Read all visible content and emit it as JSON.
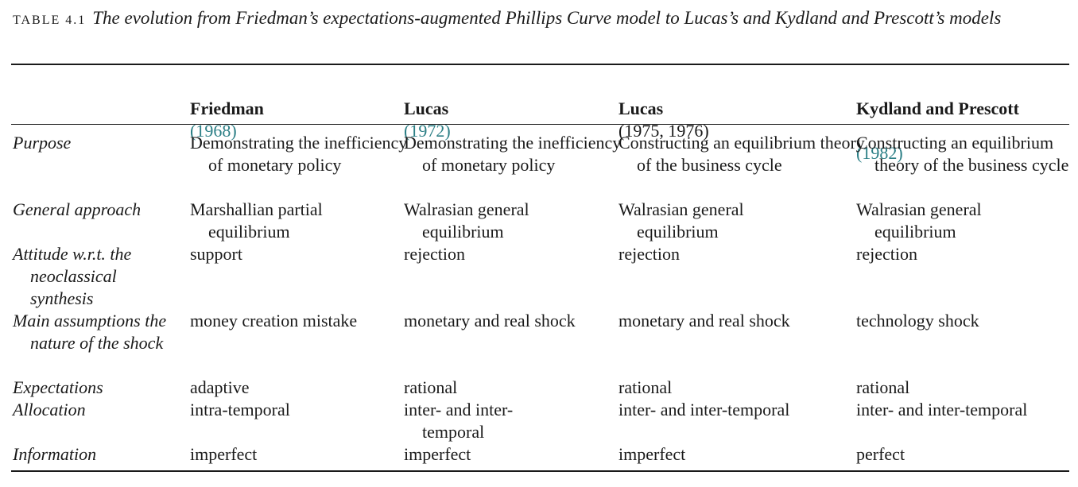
{
  "caption": {
    "label": "TABLE 4.1",
    "text": "The evolution from Friedman’s expectations-augmented Phillips Curve model to Lucas’s and Kydland and Prescott’s models"
  },
  "columns": [
    {
      "name": "Friedman",
      "year": "(1968)",
      "year_linked": true
    },
    {
      "name": "Lucas",
      "year": "(1972)",
      "year_linked": true
    },
    {
      "name": "Lucas",
      "year": "(1975, 1976)",
      "year_linked": false
    },
    {
      "name": "Kydland and Prescott",
      "year": "(1982)",
      "year_linked": true
    }
  ],
  "rows": [
    {
      "label": "Purpose",
      "cells": [
        "Demonstrating the inefficiency of monetary policy",
        "Demonstrating the inefficiency of monetary policy",
        "Constructing an equilibrium theory of the business cycle",
        "Constructing an equilibrium theory of the business cycle"
      ]
    },
    {
      "label": "General approach",
      "cells": [
        "Marshallian partial equilibrium",
        "Walrasian general equilibrium",
        "Walrasian general equilibrium",
        "Walrasian general equilibrium"
      ]
    },
    {
      "label": "Attitude w.r.t. the neoclassical synthesis",
      "cells": [
        "support",
        "rejection",
        "rejection",
        "rejection"
      ]
    },
    {
      "label": "Main assumptions the nature of the shock",
      "cells": [
        "money creation mistake",
        "monetary and real shock",
        "monetary and real shock",
        "technology shock"
      ]
    },
    {
      "label": "Expectations",
      "cells": [
        "adaptive",
        "rational",
        "rational",
        "rational"
      ]
    },
    {
      "label": "Allocation",
      "cells": [
        "intra-temporal",
        "inter- and inter-temporal",
        "inter- and inter-temporal",
        "inter- and inter-temporal"
      ]
    },
    {
      "label": "Information",
      "cells": [
        "imperfect",
        "imperfect",
        "imperfect",
        "perfect"
      ]
    }
  ],
  "colors": {
    "text": "#1a1a1a",
    "link": "#2c7f86"
  }
}
